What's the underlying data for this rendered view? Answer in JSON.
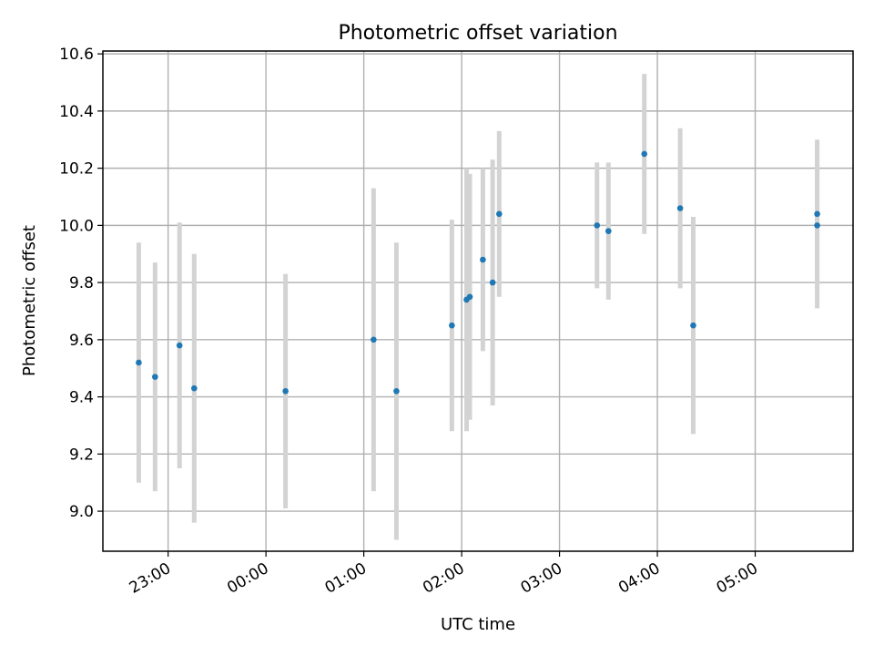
{
  "chart_data": {
    "type": "scatter",
    "title": "Photometric offset variation",
    "xlabel": "UTC time",
    "ylabel": "Photometric offset",
    "x_is_time": true,
    "x_ticks": [
      "23:00",
      "00:00",
      "01:00",
      "02:00",
      "03:00",
      "04:00",
      "05:00"
    ],
    "xlim": [
      "22:20",
      "06:00"
    ],
    "y_ticks": [
      "9.0",
      "9.2",
      "9.4",
      "9.6",
      "9.8",
      "10.0",
      "10.2",
      "10.4",
      "10.6"
    ],
    "ylim": [
      8.86,
      10.61
    ],
    "grid": true,
    "marker_color": "#1f77b4",
    "errorbar_color": "#d3d3d3",
    "series": [
      {
        "points": [
          {
            "x": "22:42",
            "y": 9.52,
            "yerr": 0.42
          },
          {
            "x": "22:52",
            "y": 9.47,
            "yerr": 0.4
          },
          {
            "x": "23:07",
            "y": 9.58,
            "yerr": 0.43
          },
          {
            "x": "23:16",
            "y": 9.43,
            "yerr": 0.47
          },
          {
            "x": "00:12",
            "y": 9.42,
            "yerr": 0.41
          },
          {
            "x": "01:06",
            "y": 9.6,
            "yerr": 0.53
          },
          {
            "x": "01:20",
            "y": 9.42,
            "yerr": 0.52
          },
          {
            "x": "01:54",
            "y": 9.65,
            "yerr": 0.37
          },
          {
            "x": "02:03",
            "y": 9.74,
            "yerr": 0.46
          },
          {
            "x": "02:05",
            "y": 9.75,
            "yerr": 0.43
          },
          {
            "x": "02:13",
            "y": 9.88,
            "yerr": 0.32
          },
          {
            "x": "02:19",
            "y": 9.8,
            "yerr": 0.43
          },
          {
            "x": "02:23",
            "y": 10.04,
            "yerr": 0.29
          },
          {
            "x": "03:23",
            "y": 10.0,
            "yerr": 0.22
          },
          {
            "x": "03:30",
            "y": 9.98,
            "yerr": 0.24
          },
          {
            "x": "03:52",
            "y": 10.25,
            "yerr": 0.28
          },
          {
            "x": "04:14",
            "y": 10.06,
            "yerr": 0.28
          },
          {
            "x": "04:22",
            "y": 9.65,
            "yerr": 0.38
          },
          {
            "x": "05:38",
            "y": 10.04,
            "yerr": 0.26
          },
          {
            "x": "05:38",
            "y": 10.0,
            "yerr": 0.29
          }
        ]
      }
    ]
  }
}
